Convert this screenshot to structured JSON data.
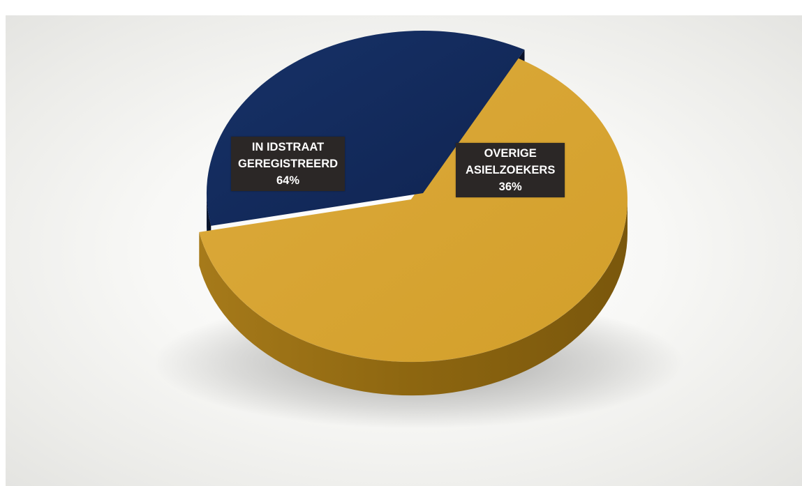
{
  "chart_data": {
    "type": "pie",
    "title": "",
    "slices": [
      {
        "label_lines": [
          "IN IDSTRAAT",
          "GEREGISTREERD",
          "64%"
        ],
        "value": 64,
        "color": "#dba631",
        "side_color": "#9b7112"
      },
      {
        "label_lines": [
          "OVERIGE",
          "ASIELZOEKERS",
          "36%"
        ],
        "value": 36,
        "color": "#132b5e",
        "side_color": "#0a1428"
      }
    ],
    "style": "3d-exploded",
    "label_box_color": "#2b2726"
  }
}
